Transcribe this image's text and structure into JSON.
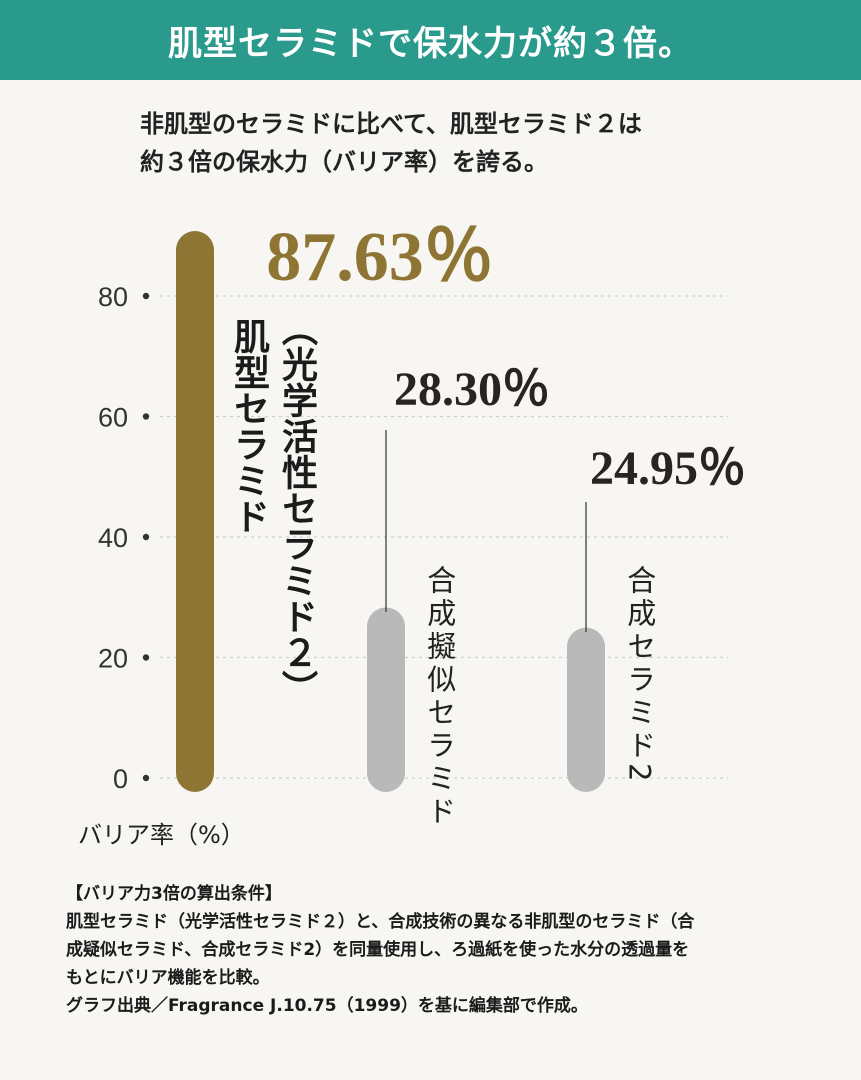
{
  "header": {
    "title": "肌型セラミドで保水力が約３倍。"
  },
  "subtitle": {
    "line1": "非肌型のセラミドに比べて、肌型セラミド２は",
    "line2": "約３倍の保水力（バリア率）を誇る。"
  },
  "colors": {
    "header_bg": "#2a9a8d",
    "main_bar": "#8f7534",
    "other_bar": "#b9b9b9",
    "main_value": "#8f7534",
    "other_value": "#2a2420"
  },
  "chart_data": {
    "type": "bar",
    "categories": [
      "肌型セラミド（光学活性セラミド２）",
      "合成擬似セラミド",
      "合成セラミド２"
    ],
    "values": [
      87.63,
      28.3,
      24.95
    ],
    "value_labels": [
      "87.63％",
      "28.30％",
      "24.95％"
    ],
    "y_ticks": [
      "80",
      "60",
      "40",
      "20",
      "0"
    ],
    "ylabel": "バリア率（%）",
    "ylim": [
      0,
      80
    ],
    "grid": true,
    "main_label": "肌型セラミド",
    "main_sub_label": "（光学活性セラミド２）",
    "cat2_label": "合成擬似セラミド",
    "cat3_label": "合成セラミド2"
  },
  "notes": {
    "heading": "【バリア力3倍の算出条件】",
    "line1": "肌型セラミド（光学活性セラミド２）と、合成技術の異なる非肌型のセラミド（合",
    "line2": "成疑似セラミド、合成セラミド2）を同量使用し、ろ過紙を使った水分の透過量を",
    "line3": "もとにバリア機能を比較。",
    "line4": "グラフ出典／Fragrance J.10.75（1999）を基に編集部で作成。"
  }
}
